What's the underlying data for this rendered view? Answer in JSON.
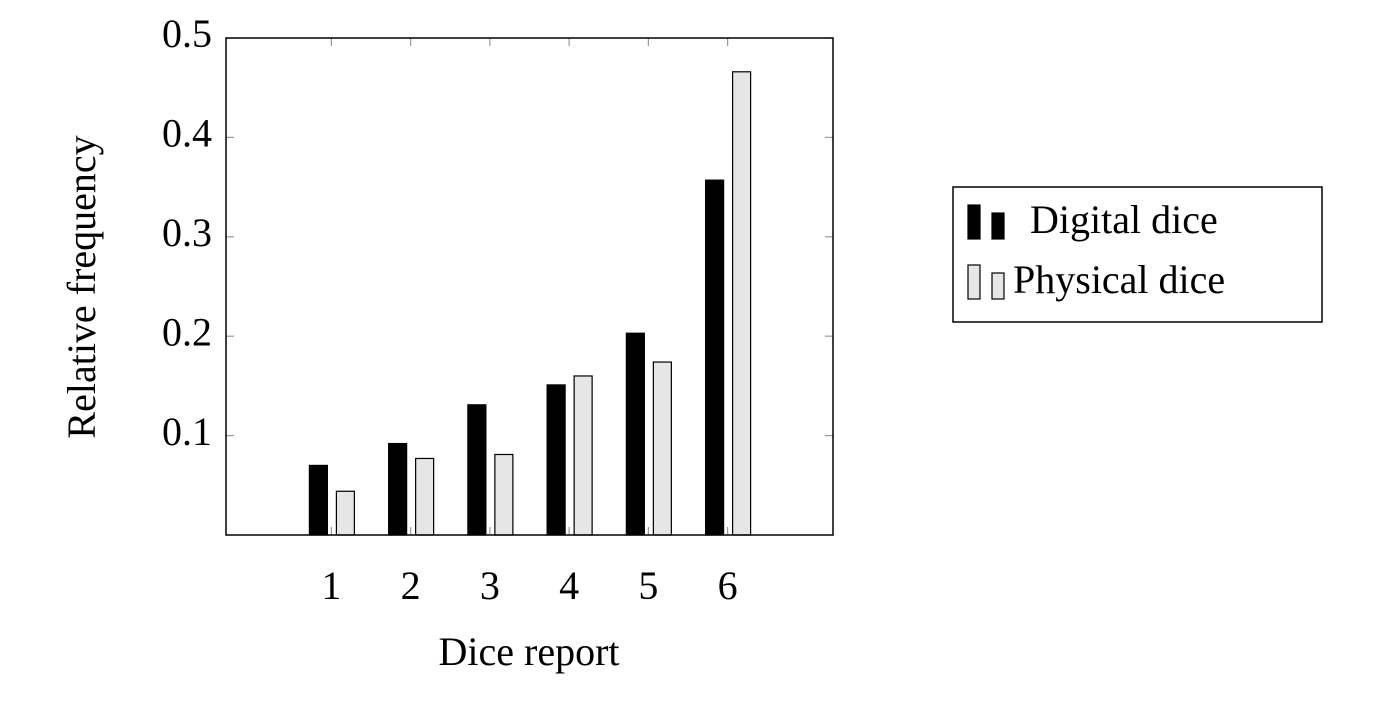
{
  "chart_data": {
    "type": "bar",
    "x_label": "Dice report",
    "y_label": "Relative frequency",
    "categories": [
      "1",
      "2",
      "3",
      "4",
      "5",
      "6"
    ],
    "series": [
      {
        "name": "Digital dice",
        "color": "#000000",
        "values": [
          0.07,
          0.092,
          0.131,
          0.151,
          0.203,
          0.357
        ]
      },
      {
        "name": "Physical dice",
        "color": "#e6e6e6",
        "values": [
          0.044,
          0.077,
          0.081,
          0.16,
          0.174,
          0.466
        ]
      }
    ],
    "ylim": [
      0,
      0.5
    ],
    "yticks": [
      0.1,
      0.2,
      0.3,
      0.4,
      0.5
    ],
    "legend": "outside-right"
  }
}
